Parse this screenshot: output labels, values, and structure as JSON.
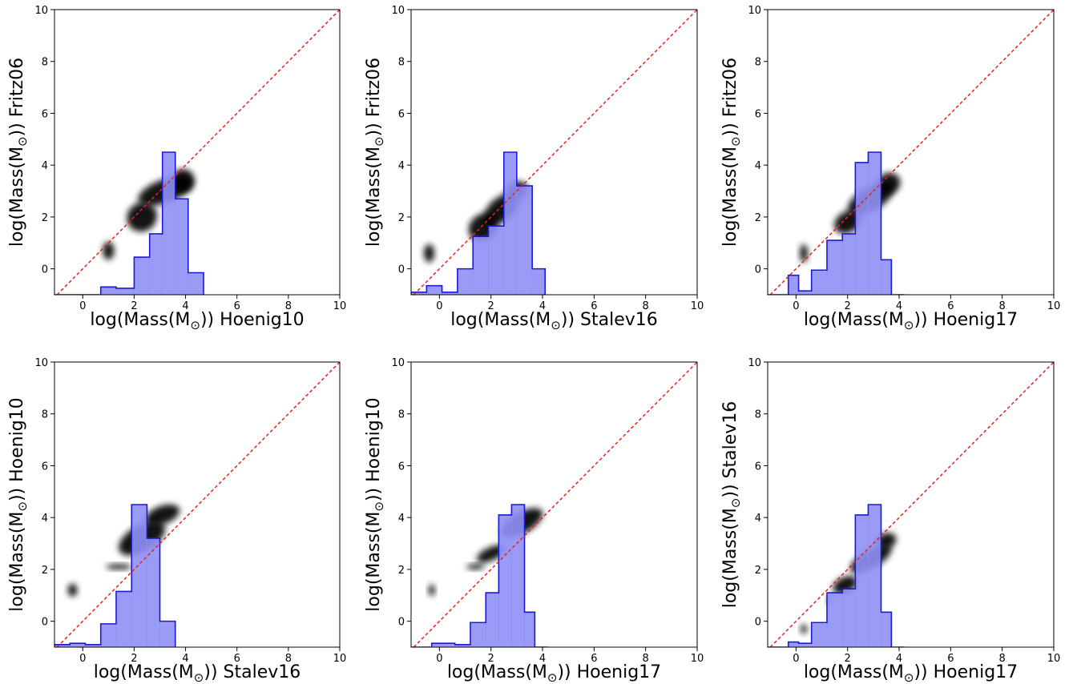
{
  "chart_data": [
    {
      "type": "histogram-scatter",
      "xlabel_prefix": "log(Mass(M",
      "xlabel_sub": "⊙",
      "xlabel_suffix": ")) Hoenig10",
      "ylabel_prefix": "log(Mass(M",
      "ylabel_sub": "⊙",
      "ylabel_suffix": ")) Fritz06",
      "xlim": [
        -1.1,
        10
      ],
      "ylim": [
        -1,
        10
      ],
      "xticks": [
        0,
        2,
        4,
        6,
        8,
        10
      ],
      "yticks": [
        0,
        2,
        4,
        6,
        8,
        10
      ],
      "identity_line": true,
      "histogram": {
        "edges": [
          -1.1,
          -0.5,
          0.1,
          0.7,
          1.3,
          2.0,
          2.6,
          3.1,
          3.6,
          4.1,
          4.7
        ],
        "heights": [
          -1,
          -1,
          -1,
          -0.7,
          -0.75,
          0.45,
          1.35,
          4.5,
          2.7,
          -0.15
        ]
      },
      "density_blobs": [
        {
          "x": 3.2,
          "y": 3.0,
          "rx": 1.1,
          "ry": 0.45,
          "rot": -20
        },
        {
          "x": 2.3,
          "y": 2.0,
          "rx": 0.6,
          "ry": 0.55,
          "rot": -35
        },
        {
          "x": 3.9,
          "y": 3.4,
          "rx": 0.45,
          "ry": 0.45,
          "rot": 0
        },
        {
          "x": 1.0,
          "y": 0.7,
          "rx": 0.22,
          "ry": 0.35,
          "rot": 0
        }
      ]
    },
    {
      "type": "histogram-scatter",
      "xlabel_prefix": "log(Mass(M",
      "xlabel_sub": "⊙",
      "xlabel_suffix": ")) Stalev16",
      "ylabel_prefix": "log(Mass(M",
      "ylabel_sub": "⊙",
      "ylabel_suffix": ")) Fritz06",
      "xlim": [
        -1.1,
        10
      ],
      "ylim": [
        -1,
        10
      ],
      "xticks": [
        0,
        2,
        4,
        6,
        8,
        10
      ],
      "yticks": [
        0,
        2,
        4,
        6,
        8,
        10
      ],
      "identity_line": true,
      "histogram": {
        "edges": [
          -1.1,
          -0.5,
          0.1,
          0.7,
          1.3,
          1.9,
          2.5,
          3.0,
          3.6,
          4.1
        ],
        "heights": [
          -0.9,
          -0.65,
          -0.9,
          0.0,
          1.25,
          1.65,
          4.5,
          3.2,
          0.0
        ]
      },
      "density_blobs": [
        {
          "x": 1.7,
          "y": 1.6,
          "rx": 0.6,
          "ry": 0.5,
          "rot": -35
        },
        {
          "x": 2.4,
          "y": 2.3,
          "rx": 0.8,
          "ry": 0.45,
          "rot": -40
        },
        {
          "x": 3.0,
          "y": 3.0,
          "rx": 0.45,
          "ry": 0.35,
          "rot": -30
        },
        {
          "x": -0.4,
          "y": 0.6,
          "rx": 0.2,
          "ry": 0.35,
          "rot": 0
        }
      ]
    },
    {
      "type": "histogram-scatter",
      "xlabel_prefix": "log(Mass(M",
      "xlabel_sub": "⊙",
      "xlabel_suffix": ")) Hoenig17",
      "ylabel_prefix": "log(Mass(M",
      "ylabel_sub": "⊙",
      "ylabel_suffix": ")) Fritz06",
      "xlim": [
        -1.1,
        10
      ],
      "ylim": [
        -1,
        10
      ],
      "xticks": [
        0,
        2,
        4,
        6,
        8,
        10
      ],
      "yticks": [
        0,
        2,
        4,
        6,
        8,
        10
      ],
      "identity_line": true,
      "histogram": {
        "edges": [
          -1.1,
          -0.3,
          0.1,
          0.6,
          1.2,
          1.8,
          2.3,
          2.8,
          3.3,
          3.7,
          4.2
        ],
        "heights": [
          -1,
          -0.25,
          -0.85,
          -0.05,
          1.1,
          1.35,
          4.1,
          4.5,
          0.35,
          -1
        ]
      },
      "density_blobs": [
        {
          "x": 2.0,
          "y": 1.8,
          "rx": 0.55,
          "ry": 0.4,
          "rot": -30
        },
        {
          "x": 2.9,
          "y": 2.7,
          "rx": 1.0,
          "ry": 0.45,
          "rot": -30
        },
        {
          "x": 3.6,
          "y": 3.3,
          "rx": 0.45,
          "ry": 0.4,
          "rot": -20
        },
        {
          "x": 0.3,
          "y": 0.6,
          "rx": 0.15,
          "ry": 0.35,
          "rot": 0
        }
      ]
    },
    {
      "type": "histogram-scatter",
      "xlabel_prefix": "log(Mass(M",
      "xlabel_sub": "⊙",
      "xlabel_suffix": ")) Stalev16",
      "ylabel_prefix": "log(Mass(M",
      "ylabel_sub": "⊙",
      "ylabel_suffix": ")) Hoenig10",
      "xlim": [
        -1.1,
        10
      ],
      "ylim": [
        -1,
        10
      ],
      "xticks": [
        0,
        2,
        4,
        6,
        8,
        10
      ],
      "yticks": [
        0,
        2,
        4,
        6,
        8,
        10
      ],
      "identity_line": true,
      "histogram": {
        "edges": [
          -1.1,
          -0.5,
          0.1,
          0.7,
          1.3,
          1.9,
          2.5,
          3.0,
          3.6
        ],
        "heights": [
          -0.9,
          -0.85,
          -0.9,
          -0.1,
          1.15,
          4.5,
          3.2,
          0.0
        ]
      },
      "density_blobs": [
        {
          "x": 2.3,
          "y": 3.2,
          "rx": 1.0,
          "ry": 0.5,
          "rot": -30
        },
        {
          "x": 3.1,
          "y": 4.1,
          "rx": 0.7,
          "ry": 0.35,
          "rot": -20
        },
        {
          "x": 1.4,
          "y": 2.1,
          "rx": 0.5,
          "ry": 0.1,
          "rot": 0
        },
        {
          "x": -0.4,
          "y": 1.2,
          "rx": 0.18,
          "ry": 0.25,
          "rot": 0
        }
      ]
    },
    {
      "type": "histogram-scatter",
      "xlabel_prefix": "log(Mass(M",
      "xlabel_sub": "⊙",
      "xlabel_suffix": ")) Hoenig17",
      "ylabel_prefix": "log(Mass(M",
      "ylabel_sub": "⊙",
      "ylabel_suffix": ")) Hoenig10",
      "xlim": [
        -1.1,
        10
      ],
      "ylim": [
        -1,
        10
      ],
      "xticks": [
        0,
        2,
        4,
        6,
        8,
        10
      ],
      "yticks": [
        0,
        2,
        4,
        6,
        8,
        10
      ],
      "identity_line": true,
      "histogram": {
        "edges": [
          -1.1,
          -0.3,
          0.1,
          0.6,
          1.2,
          1.8,
          2.3,
          2.8,
          3.3,
          3.7,
          4.2
        ],
        "heights": [
          -1,
          -0.85,
          -0.85,
          -0.9,
          -0.05,
          1.1,
          4.1,
          4.5,
          0.35,
          -1
        ]
      },
      "density_blobs": [
        {
          "x": 2.0,
          "y": 2.6,
          "rx": 0.6,
          "ry": 0.25,
          "rot": -25
        },
        {
          "x": 3.2,
          "y": 3.8,
          "rx": 0.9,
          "ry": 0.4,
          "rot": -30
        },
        {
          "x": 1.4,
          "y": 2.1,
          "rx": 0.35,
          "ry": 0.1,
          "rot": 0
        },
        {
          "x": -0.3,
          "y": 1.2,
          "rx": 0.12,
          "ry": 0.22,
          "rot": 0
        }
      ]
    },
    {
      "type": "histogram-scatter",
      "xlabel_prefix": "log(Mass(M",
      "xlabel_sub": "⊙",
      "xlabel_suffix": ")) Hoenig17",
      "ylabel_prefix": "log(Mass(M",
      "ylabel_sub": "⊙",
      "ylabel_suffix": ")) Stalev16",
      "xlim": [
        -1.1,
        10
      ],
      "ylim": [
        -1,
        10
      ],
      "xticks": [
        0,
        2,
        4,
        6,
        8,
        10
      ],
      "yticks": [
        0,
        2,
        4,
        6,
        8,
        10
      ],
      "identity_line": true,
      "histogram": {
        "edges": [
          -1.1,
          -0.3,
          0.1,
          0.6,
          1.2,
          1.8,
          2.3,
          2.8,
          3.3,
          3.7,
          4.2
        ],
        "heights": [
          -1,
          -0.8,
          -0.85,
          -0.05,
          1.1,
          1.25,
          4.1,
          4.5,
          0.35,
          -1
        ]
      },
      "density_blobs": [
        {
          "x": 1.9,
          "y": 1.4,
          "rx": 0.5,
          "ry": 0.3,
          "rot": -25
        },
        {
          "x": 2.9,
          "y": 2.4,
          "rx": 0.9,
          "ry": 0.35,
          "rot": -30
        },
        {
          "x": 3.5,
          "y": 3.1,
          "rx": 0.4,
          "ry": 0.3,
          "rot": -20
        },
        {
          "x": 0.3,
          "y": -0.3,
          "rx": 0.12,
          "ry": 0.18,
          "rot": 0
        },
        {
          "x": 1.3,
          "y": 0.8,
          "rx": 0.1,
          "ry": 0.12,
          "rot": 0
        }
      ]
    }
  ],
  "colors": {
    "histogram_fill": "#8f90f5",
    "histogram_edge": "#1a1ad6",
    "identity_line": "#e8221b",
    "density": "#000000"
  }
}
